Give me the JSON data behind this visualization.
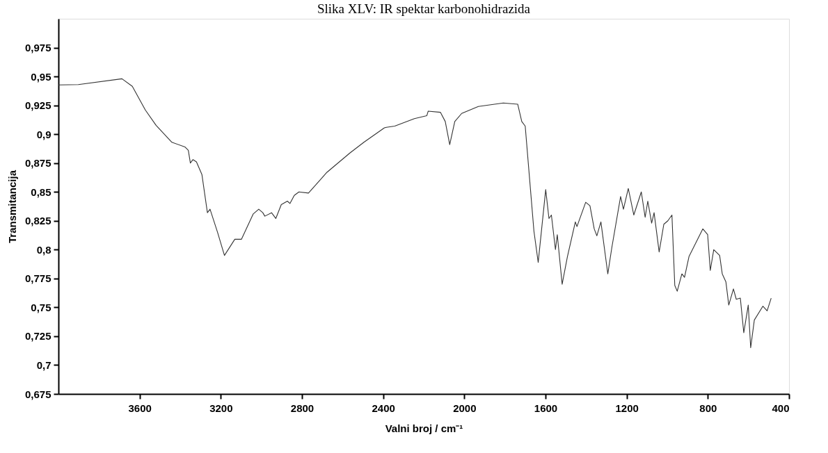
{
  "chart_data": {
    "type": "line",
    "title": "Slika XLV: IR spektar karbonohidrazida",
    "xlabel": "Valni broj / cm⁻¹",
    "ylabel": "Transmitancija",
    "x": [
      4000,
      3902,
      3687,
      3636,
      3572,
      3519,
      3441,
      3377,
      3360,
      3350,
      3337,
      3320,
      3293,
      3266,
      3253,
      3216,
      3182,
      3131,
      3098,
      3040,
      3013,
      2993,
      2983,
      2950,
      2929,
      2902,
      2872,
      2859,
      2838,
      2815,
      2768,
      2677,
      2562,
      2495,
      2394,
      2384,
      2343,
      2246,
      2185,
      2178,
      2118,
      2094,
      2072,
      2047,
      2013,
      1931,
      1808,
      1737,
      1717,
      1700,
      1657,
      1636,
      1599,
      1583,
      1571,
      1551,
      1542,
      1518,
      1492,
      1453,
      1445,
      1402,
      1381,
      1360,
      1347,
      1327,
      1293,
      1273,
      1230,
      1216,
      1192,
      1165,
      1128,
      1109,
      1096,
      1077,
      1065,
      1040,
      1017,
      997,
      977,
      963,
      951,
      928,
      915,
      893,
      825,
      801,
      788,
      771,
      742,
      729,
      711,
      697,
      674,
      660,
      640,
      623,
      601,
      589,
      571,
      529,
      508,
      488
    ],
    "series": [
      {
        "color": "#333333",
        "values": [
          0.9427,
          0.943,
          0.948,
          0.9415,
          0.921,
          0.9077,
          0.893,
          0.889,
          0.886,
          0.875,
          0.878,
          0.876,
          0.865,
          0.832,
          0.835,
          0.815,
          0.795,
          0.809,
          0.809,
          0.831,
          0.835,
          0.832,
          0.829,
          0.832,
          0.827,
          0.839,
          0.842,
          0.84,
          0.847,
          0.85,
          0.849,
          0.867,
          0.884,
          0.893,
          0.9055,
          0.906,
          0.907,
          0.9135,
          0.916,
          0.92,
          0.919,
          0.911,
          0.891,
          0.911,
          0.918,
          0.924,
          0.927,
          0.926,
          0.911,
          0.907,
          0.816,
          0.789,
          0.852,
          0.827,
          0.83,
          0.8,
          0.813,
          0.77,
          0.794,
          0.824,
          0.82,
          0.841,
          0.838,
          0.818,
          0.812,
          0.824,
          0.779,
          0.802,
          0.846,
          0.835,
          0.853,
          0.83,
          0.85,
          0.828,
          0.842,
          0.823,
          0.832,
          0.798,
          0.822,
          0.825,
          0.83,
          0.769,
          0.764,
          0.779,
          0.776,
          0.794,
          0.818,
          0.813,
          0.782,
          0.8,
          0.795,
          0.779,
          0.772,
          0.752,
          0.766,
          0.757,
          0.758,
          0.728,
          0.752,
          0.715,
          0.739,
          0.751,
          0.747,
          0.758
        ]
      }
    ],
    "xlim": [
      4000,
      400
    ],
    "xticks": [
      3600,
      3200,
      2800,
      2400,
      2000,
      1600,
      1200,
      800,
      400
    ],
    "ylim": [
      0.675,
      1.0
    ],
    "yticks": [
      {
        "value": 0.675,
        "label": "0,675"
      },
      {
        "value": 0.7,
        "label": "0,7"
      },
      {
        "value": 0.725,
        "label": "0,725"
      },
      {
        "value": 0.75,
        "label": "0,75"
      },
      {
        "value": 0.775,
        "label": "0,775"
      },
      {
        "value": 0.8,
        "label": "0,8"
      },
      {
        "value": 0.825,
        "label": "0,825"
      },
      {
        "value": 0.85,
        "label": "0,85"
      },
      {
        "value": 0.875,
        "label": "0,875"
      },
      {
        "value": 0.9,
        "label": "0,9"
      },
      {
        "value": 0.925,
        "label": "0,925"
      },
      {
        "value": 0.95,
        "label": "0,95"
      },
      {
        "value": 0.975,
        "label": "0,975"
      }
    ],
    "grid": false,
    "legend": false,
    "marker": "none",
    "line_style": "solid"
  }
}
